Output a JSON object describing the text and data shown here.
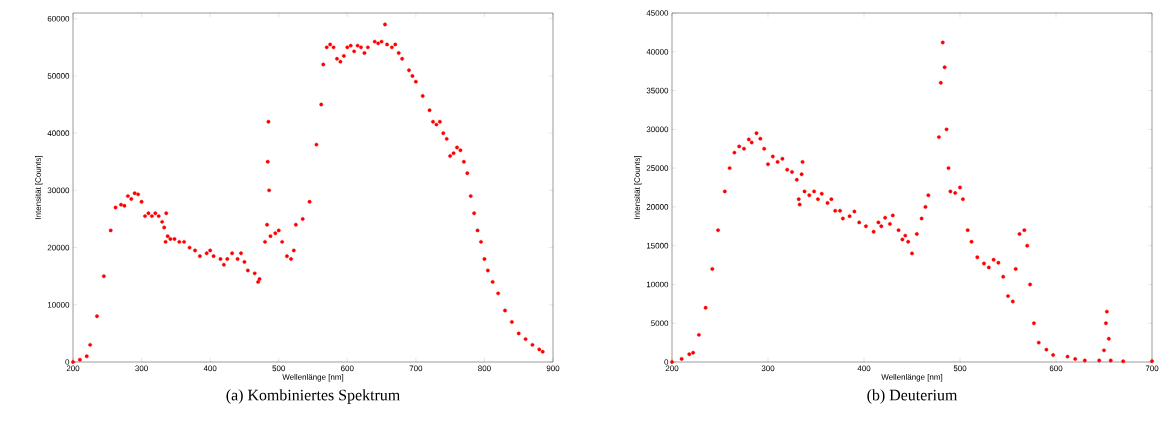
{
  "chart_data": [
    {
      "type": "scatter",
      "title": "(a) Kombiniertes Spektrum",
      "xlabel": "Wellenlänge [nm]",
      "ylabel": "Intensität [Counts]",
      "color": "#ff0000",
      "marker": "circle",
      "grid": false,
      "xlim": [
        200,
        900
      ],
      "ylim": [
        0,
        61000
      ],
      "xticks": [
        200,
        300,
        400,
        500,
        600,
        700,
        800,
        900
      ],
      "yticks": [
        0,
        10000,
        20000,
        30000,
        40000,
        50000,
        60000
      ],
      "x": [
        200,
        210,
        220,
        225,
        235,
        245,
        255,
        262,
        270,
        275,
        280,
        285,
        290,
        295,
        300,
        305,
        310,
        315,
        320,
        325,
        330,
        333,
        335,
        336,
        338,
        342,
        348,
        355,
        362,
        370,
        378,
        385,
        395,
        400,
        405,
        415,
        420,
        425,
        432,
        440,
        445,
        450,
        455,
        465,
        470,
        472,
        480,
        483,
        484,
        485,
        486,
        488,
        495,
        500,
        505,
        512,
        518,
        522,
        525,
        535,
        545,
        555,
        562,
        565,
        570,
        575,
        580,
        585,
        590,
        595,
        600,
        605,
        610,
        615,
        620,
        625,
        630,
        640,
        645,
        650,
        655,
        658,
        665,
        670,
        675,
        680,
        690,
        695,
        700,
        710,
        720,
        725,
        730,
        735,
        740,
        745,
        750,
        755,
        760,
        765,
        770,
        775,
        780,
        785,
        790,
        795,
        800,
        805,
        812,
        820,
        830,
        840,
        850,
        860,
        870,
        880,
        885
      ],
      "values": [
        0,
        400,
        1000,
        3000,
        8000,
        15000,
        23000,
        27000,
        27500,
        27300,
        29000,
        28500,
        29500,
        29300,
        28000,
        25500,
        26000,
        25500,
        26000,
        25500,
        24500,
        23500,
        21000,
        26000,
        22000,
        21500,
        21500,
        21000,
        21000,
        20000,
        19500,
        18500,
        19000,
        19500,
        18500,
        18000,
        17000,
        18000,
        19000,
        18000,
        19000,
        17500,
        16000,
        15500,
        14000,
        14500,
        21000,
        24000,
        35000,
        42000,
        30000,
        22000,
        22500,
        23000,
        21000,
        18500,
        18000,
        19500,
        24000,
        25000,
        28000,
        38000,
        45000,
        52000,
        55000,
        55500,
        55000,
        53000,
        52500,
        53500,
        55000,
        55300,
        54300,
        55300,
        55000,
        54000,
        55000,
        56000,
        55700,
        56000,
        59000,
        55500,
        55000,
        55500,
        54000,
        53000,
        51000,
        50000,
        49000,
        46500,
        44000,
        42000,
        41500,
        42000,
        40000,
        39000,
        36000,
        36500,
        37500,
        37000,
        35000,
        33000,
        29000,
        26000,
        23000,
        21000,
        18000,
        16000,
        14000,
        12000,
        9000,
        7000,
        5000,
        4000,
        3000,
        2200,
        1800
      ]
    },
    {
      "type": "scatter",
      "title": "(b) Deuterium",
      "xlabel": "Wellenlänge [nm]",
      "ylabel": "Intensität [Counts]",
      "color": "#ff0000",
      "marker": "circle",
      "grid": false,
      "xlim": [
        200,
        700
      ],
      "ylim": [
        0,
        45000
      ],
      "xticks": [
        200,
        300,
        400,
        500,
        600,
        700
      ],
      "yticks": [
        0,
        5000,
        10000,
        15000,
        20000,
        25000,
        30000,
        35000,
        40000,
        45000
      ],
      "x": [
        200,
        210,
        218,
        222,
        228,
        235,
        242,
        248,
        255,
        260,
        265,
        270,
        275,
        280,
        283,
        288,
        292,
        296,
        300,
        305,
        310,
        315,
        320,
        325,
        330,
        332,
        333,
        335,
        336,
        338,
        343,
        348,
        352,
        356,
        362,
        366,
        370,
        375,
        378,
        385,
        390,
        395,
        402,
        410,
        415,
        418,
        422,
        427,
        430,
        436,
        440,
        443,
        446,
        450,
        455,
        460,
        464,
        467,
        478,
        480,
        482,
        484,
        486,
        488,
        490,
        495,
        500,
        503,
        508,
        512,
        518,
        525,
        530,
        535,
        540,
        545,
        550,
        555,
        558,
        562,
        567,
        570,
        573,
        577,
        582,
        590,
        597,
        612,
        620,
        630,
        645,
        650,
        652,
        653,
        655,
        657,
        670,
        700
      ],
      "values": [
        0,
        400,
        1000,
        1200,
        3500,
        7000,
        12000,
        17000,
        22000,
        25000,
        27000,
        27800,
        27500,
        28700,
        28300,
        29500,
        28800,
        27500,
        25500,
        26500,
        25800,
        26200,
        24800,
        24500,
        23500,
        21000,
        20300,
        24200,
        25800,
        22000,
        21500,
        22000,
        21000,
        21700,
        20500,
        21000,
        19500,
        19500,
        18500,
        18800,
        19400,
        18000,
        17500,
        16800,
        18000,
        17500,
        18600,
        17800,
        18900,
        17000,
        15800,
        16300,
        15500,
        14000,
        16500,
        18500,
        20000,
        21500,
        29000,
        36000,
        41200,
        38000,
        30000,
        25000,
        22000,
        21800,
        22500,
        21000,
        17000,
        15500,
        13500,
        12700,
        12200,
        13200,
        12800,
        11000,
        8500,
        7800,
        12000,
        16500,
        17000,
        15000,
        10000,
        5000,
        2500,
        1600,
        900,
        700,
        400,
        200,
        200,
        1500,
        5000,
        6500,
        3000,
        200,
        100,
        100
      ]
    }
  ]
}
